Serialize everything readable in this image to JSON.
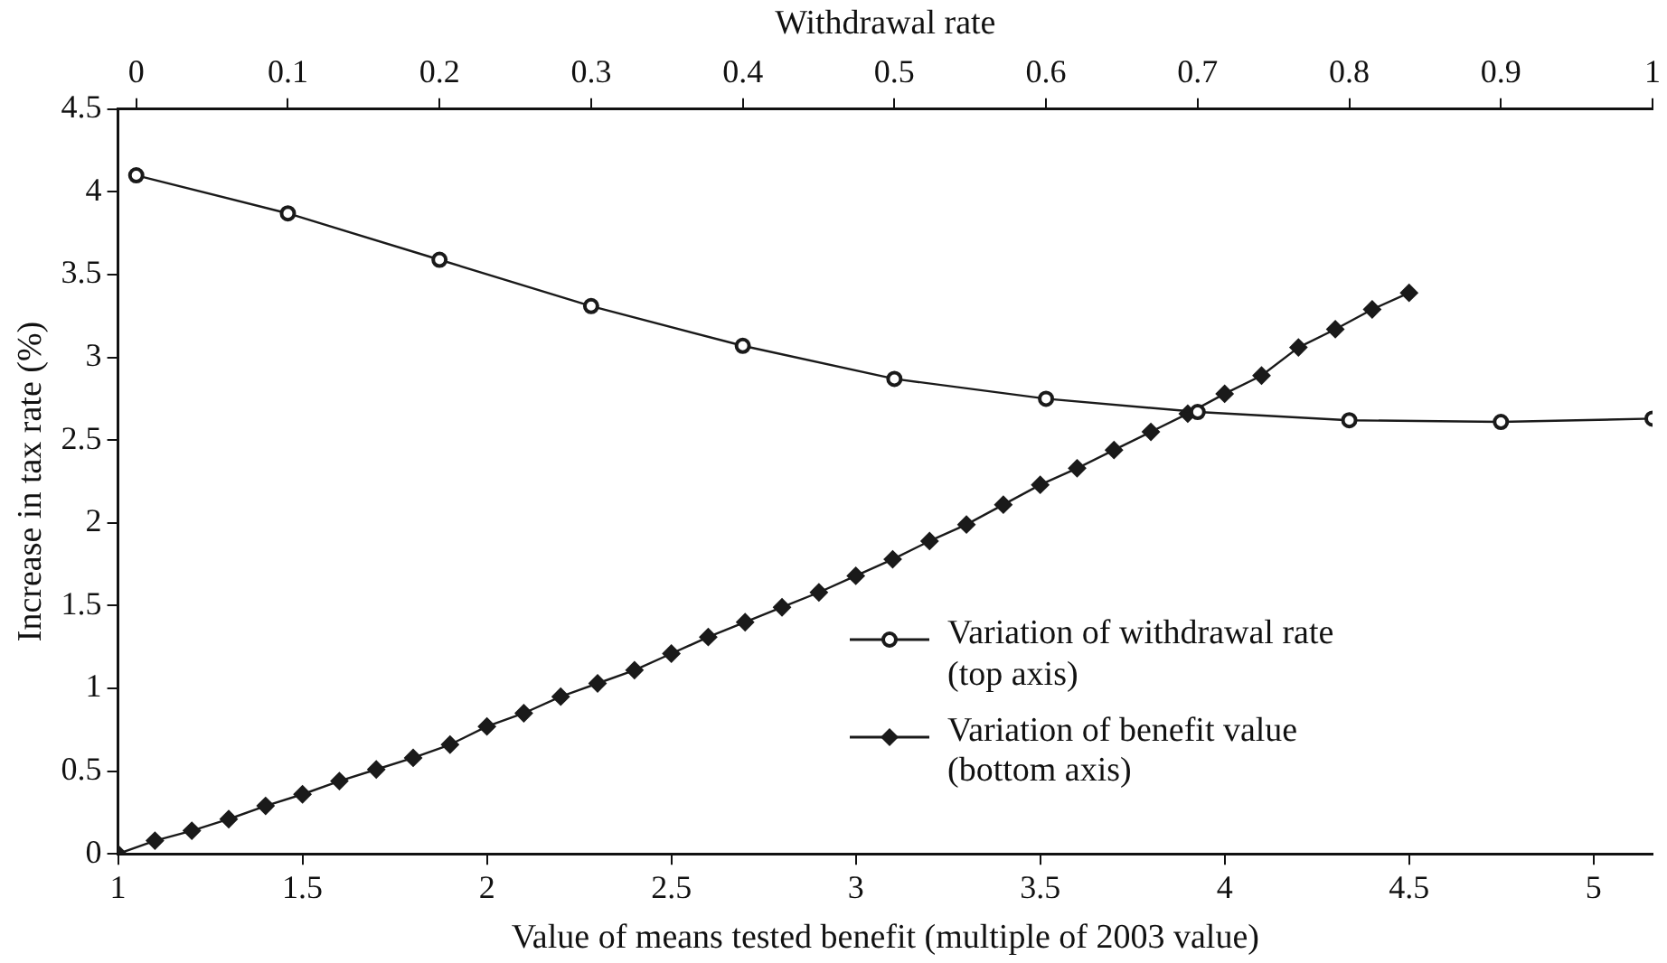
{
  "chart_data": {
    "type": "line",
    "xlabel": "Value of means tested benefit (multiple of 2003 value)",
    "x2label": "Withdrawal rate",
    "ylabel": "Increase in tax rate (%)",
    "xlim": [
      1,
      5.16
    ],
    "xticks": [
      1,
      1.5,
      2,
      2.5,
      3,
      3.5,
      4,
      4.5,
      5
    ],
    "x2lim": [
      -0.012,
      1
    ],
    "x2ticks": [
      0,
      0.1,
      0.2,
      0.3,
      0.4,
      0.5,
      0.6,
      0.7,
      0.8,
      0.9,
      1
    ],
    "ylim": [
      0,
      4.5
    ],
    "yticks": [
      0,
      0.5,
      1,
      1.5,
      2,
      2.5,
      3,
      3.5,
      4,
      4.5
    ],
    "grid": false,
    "legend": "bottom right",
    "line_style": "solid",
    "series": [
      {
        "name": "Variation of withdrawal rate (top axis)",
        "color": "#1a1a1a",
        "axis": "x2",
        "marker": "circle",
        "x": [
          0,
          0.1,
          0.2,
          0.3,
          0.4,
          0.5,
          0.6,
          0.7,
          0.8,
          0.9,
          1
        ],
        "values": [
          4.1,
          3.87,
          3.59,
          3.31,
          3.07,
          2.87,
          2.75,
          2.67,
          2.62,
          2.61,
          2.63
        ]
      },
      {
        "name": "Variation of benefit value (bottom axis)",
        "color": "#1a1a1a",
        "marker": "diamond",
        "x": [
          1,
          1.1,
          1.2,
          1.3,
          1.4,
          1.5,
          1.6,
          1.7,
          1.8,
          1.9,
          2,
          2.1,
          2.2,
          2.3,
          2.4,
          2.5,
          2.6,
          2.7,
          2.8,
          2.9,
          3,
          3.1,
          3.2,
          3.3,
          3.4,
          3.5,
          3.6,
          3.7,
          3.8,
          3.9,
          4,
          4.1,
          4.2,
          4.3,
          4.4,
          4.5
        ],
        "values": [
          0,
          0.08,
          0.14,
          0.21,
          0.29,
          0.36,
          0.44,
          0.51,
          0.58,
          0.66,
          0.77,
          0.85,
          0.95,
          1.03,
          1.11,
          1.21,
          1.31,
          1.4,
          1.49,
          1.58,
          1.68,
          1.78,
          1.89,
          1.99,
          2.11,
          2.23,
          2.33,
          2.44,
          2.55,
          2.66,
          2.78,
          2.89,
          3.06,
          3.17,
          3.29,
          3.39
        ]
      }
    ]
  }
}
